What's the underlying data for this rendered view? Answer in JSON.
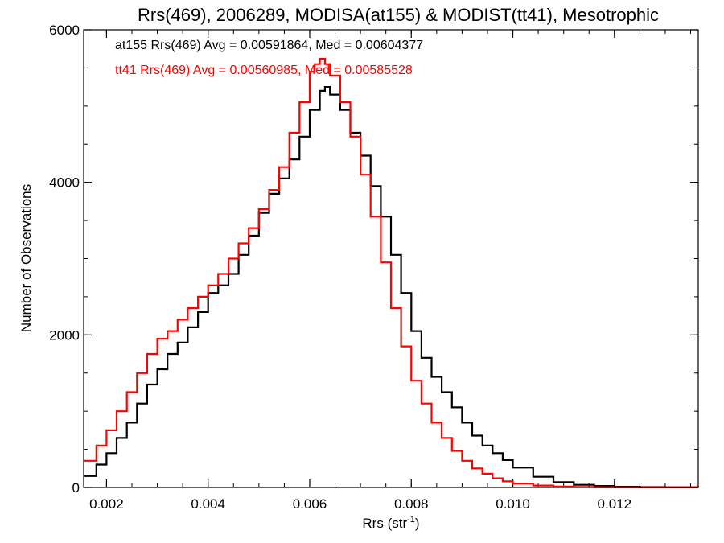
{
  "chart_data": {
    "type": "line",
    "step": true,
    "title": "Rrs(469), 2006289, MODISA(at155) & MODIST(tt41), Mesotrophic",
    "xlabel_main": "Rrs (str",
    "xlabel_sup": "-1",
    "xlabel_tail": ")",
    "ylabel": "Number of Observations",
    "xlim": [
      0.00155,
      0.01365
    ],
    "ylim": [
      0,
      6000
    ],
    "xticks": [
      {
        "value": 0.002,
        "label": "0.002"
      },
      {
        "value": 0.004,
        "label": "0.004"
      },
      {
        "value": 0.006,
        "label": "0.006"
      },
      {
        "value": 0.008,
        "label": "0.008"
      },
      {
        "value": 0.01,
        "label": "0.010"
      },
      {
        "value": 0.012,
        "label": "0.012"
      }
    ],
    "xminor_step": 0.0005,
    "yticks": [
      {
        "value": 0,
        "label": "0"
      },
      {
        "value": 2000,
        "label": "2000"
      },
      {
        "value": 4000,
        "label": "4000"
      },
      {
        "value": 6000,
        "label": "6000"
      }
    ],
    "yminor_step": 500,
    "annotations": [
      {
        "text": "at155 Rrs(469) Avg = 0.00591864, Med = 0.00604377",
        "color": "#000000"
      },
      {
        "text": "tt41 Rrs(469) Avg = 0.00560985, Med = 0.00585528",
        "color": "#ff0000"
      }
    ],
    "series": [
      {
        "color": "#000000",
        "x": [
          0.00155,
          0.0018,
          0.002,
          0.0022,
          0.0024,
          0.0026,
          0.0028,
          0.003,
          0.0032,
          0.0034,
          0.0036,
          0.0038,
          0.004,
          0.0042,
          0.0044,
          0.0046,
          0.0048,
          0.005,
          0.0052,
          0.0054,
          0.0056,
          0.0058,
          0.006,
          0.0062,
          0.0063,
          0.0064,
          0.0066,
          0.0068,
          0.007,
          0.0072,
          0.0074,
          0.0076,
          0.0078,
          0.008,
          0.0082,
          0.0084,
          0.0086,
          0.0088,
          0.009,
          0.0092,
          0.0094,
          0.0096,
          0.0098,
          0.01,
          0.0104,
          0.0108,
          0.0112,
          0.0116,
          0.012,
          0.0125,
          0.013,
          0.01365
        ],
        "y": [
          150,
          300,
          450,
          650,
          850,
          1100,
          1350,
          1550,
          1750,
          1900,
          2100,
          2300,
          2550,
          2650,
          2800,
          3050,
          3300,
          3600,
          3850,
          4050,
          4300,
          4600,
          4950,
          5200,
          5250,
          5150,
          4950,
          4650,
          4350,
          3950,
          3550,
          3050,
          2550,
          2050,
          1700,
          1450,
          1250,
          1050,
          850,
          680,
          550,
          450,
          360,
          260,
          140,
          70,
          35,
          20,
          10,
          5,
          3,
          2
        ]
      },
      {
        "color": "#ff0000",
        "x": [
          0.00155,
          0.0018,
          0.002,
          0.0022,
          0.0024,
          0.0026,
          0.0028,
          0.003,
          0.0032,
          0.0034,
          0.0036,
          0.0038,
          0.004,
          0.0042,
          0.0044,
          0.0046,
          0.0048,
          0.005,
          0.0052,
          0.0054,
          0.0056,
          0.0058,
          0.006,
          0.0061,
          0.0062,
          0.0063,
          0.0064,
          0.0066,
          0.0068,
          0.007,
          0.0072,
          0.0074,
          0.0076,
          0.0078,
          0.008,
          0.0082,
          0.0084,
          0.0086,
          0.0088,
          0.009,
          0.0092,
          0.0094,
          0.0096,
          0.0098,
          0.01,
          0.0104,
          0.0108,
          0.0112,
          0.0116,
          0.012,
          0.0125,
          0.013,
          0.01365
        ],
        "y": [
          350,
          550,
          750,
          1000,
          1250,
          1500,
          1750,
          1950,
          2050,
          2200,
          2350,
          2500,
          2650,
          2800,
          3000,
          3200,
          3400,
          3650,
          3900,
          4200,
          4650,
          5050,
          5450,
          5550,
          5620,
          5550,
          5400,
          5050,
          4600,
          4100,
          3550,
          2950,
          2350,
          1850,
          1400,
          1100,
          850,
          650,
          480,
          350,
          250,
          180,
          120,
          80,
          50,
          25,
          12,
          6,
          3,
          2,
          1,
          1,
          1
        ]
      }
    ]
  }
}
